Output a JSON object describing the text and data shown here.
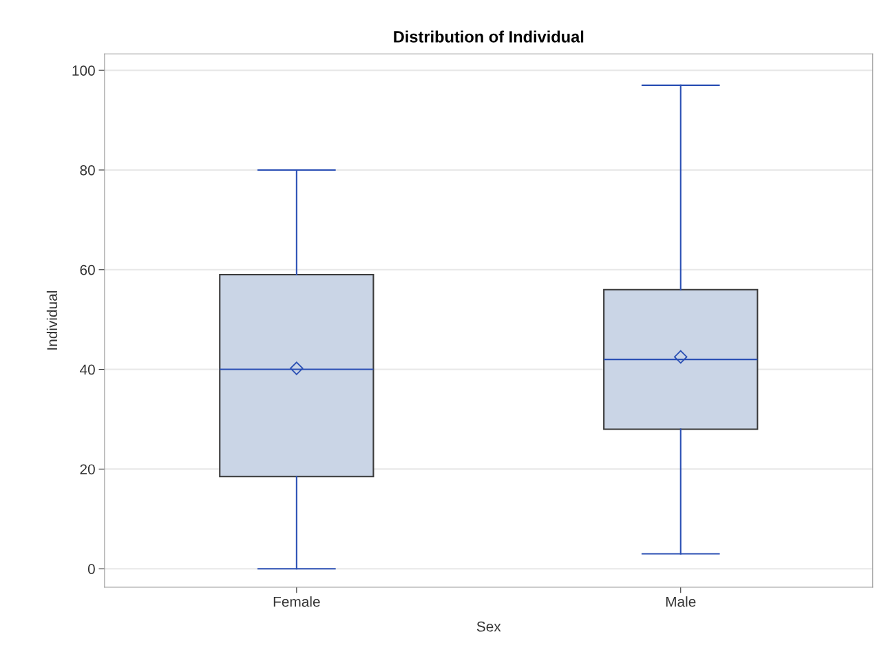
{
  "chart_data": {
    "type": "box",
    "title": "Distribution of Individual",
    "xlabel": "Sex",
    "ylabel": "Individual",
    "categories": [
      "Female",
      "Male"
    ],
    "boxes": [
      {
        "low": 0,
        "q1": 18.5,
        "median": 40,
        "q3": 59,
        "high": 80,
        "mean": 40.2
      },
      {
        "low": 3,
        "q1": 28,
        "median": 42,
        "q3": 56,
        "high": 97,
        "mean": 42.5
      }
    ],
    "color": "#cad5e6",
    "ylim": [
      -3.7,
      103.3
    ],
    "yticks": [
      0,
      20,
      40,
      60,
      80,
      100
    ],
    "grid": "y",
    "marker": "diamond"
  }
}
